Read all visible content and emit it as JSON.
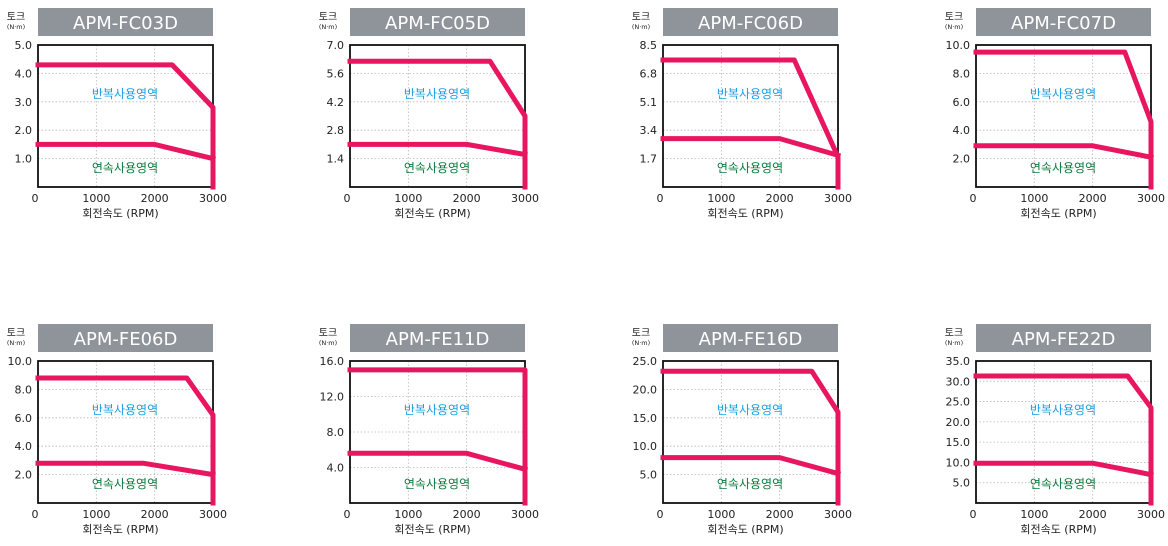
{
  "chart_data": [
    {
      "type": "line",
      "model": "APM-FC03D",
      "ylabel": "토크",
      "yunit": "(N·m)",
      "xlabel": "회전속도 (RPM)",
      "xticks": [
        "0",
        "1000",
        "2000",
        "3000"
      ],
      "yticks": [
        "5.0",
        "4.0",
        "3.0",
        "2.0",
        "1.0"
      ],
      "xlim": [
        0,
        3000
      ],
      "ylim": [
        0,
        5.0
      ],
      "region_top": "반복사용영역",
      "region_bottom": "연속사용영역",
      "series": [
        {
          "x": [
            0,
            2300,
            3000,
            3000
          ],
          "y": [
            4.3,
            4.3,
            2.8,
            0
          ]
        },
        {
          "x": [
            0,
            2000,
            3000
          ],
          "y": [
            1.5,
            1.5,
            1.0
          ]
        }
      ]
    },
    {
      "type": "line",
      "model": "APM-FC05D",
      "ylabel": "토크",
      "yunit": "(N·m)",
      "xlabel": "회전속도 (RPM)",
      "xticks": [
        "0",
        "1000",
        "2000",
        "3000"
      ],
      "yticks": [
        "7.0",
        "5.6",
        "4.2",
        "2.8",
        "1.4"
      ],
      "xlim": [
        0,
        3000
      ],
      "ylim": [
        0,
        7.0
      ],
      "region_top": "반복사용영역",
      "region_bottom": "연속사용영역",
      "series": [
        {
          "x": [
            0,
            2400,
            3000,
            3000
          ],
          "y": [
            6.2,
            6.2,
            3.5,
            0
          ]
        },
        {
          "x": [
            0,
            2000,
            3000
          ],
          "y": [
            2.1,
            2.1,
            1.6
          ]
        }
      ]
    },
    {
      "type": "line",
      "model": "APM-FC06D",
      "ylabel": "토크",
      "yunit": "(N·m)",
      "xlabel": "회전속도 (RPM)",
      "xticks": [
        "0",
        "1000",
        "2000",
        "3000"
      ],
      "yticks": [
        "8.5",
        "6.8",
        "5.1",
        "3.4",
        "1.7"
      ],
      "xlim": [
        0,
        3000
      ],
      "ylim": [
        0,
        8.5
      ],
      "region_top": "반복사용영역",
      "region_bottom": "연속사용영역",
      "series": [
        {
          "x": [
            0,
            2250,
            3000,
            3000
          ],
          "y": [
            7.6,
            7.6,
            1.8,
            0
          ]
        },
        {
          "x": [
            0,
            2000,
            3000
          ],
          "y": [
            2.9,
            2.9,
            1.9
          ]
        }
      ]
    },
    {
      "type": "line",
      "model": "APM-FC07D",
      "ylabel": "토크",
      "yunit": "(N·m)",
      "xlabel": "회전속도 (RPM)",
      "xticks": [
        "0",
        "1000",
        "2000",
        "3000"
      ],
      "yticks": [
        "10.0",
        "8.0",
        "6.0",
        "4.0",
        "2.0"
      ],
      "xlim": [
        0,
        3000
      ],
      "ylim": [
        0,
        10.0
      ],
      "region_top": "반복사용영역",
      "region_bottom": "연속사용영역",
      "series": [
        {
          "x": [
            0,
            2550,
            3000,
            3000
          ],
          "y": [
            9.5,
            9.5,
            4.6,
            0
          ]
        },
        {
          "x": [
            0,
            2000,
            3000
          ],
          "y": [
            2.9,
            2.9,
            2.1
          ]
        }
      ]
    },
    {
      "type": "line",
      "model": "APM-FE06D",
      "ylabel": "토크",
      "yunit": "(N·m)",
      "xlabel": "회전속도 (RPM)",
      "xticks": [
        "0",
        "1000",
        "2000",
        "3000"
      ],
      "yticks": [
        "10.0",
        "8.0",
        "6.0",
        "4.0",
        "2.0"
      ],
      "xlim": [
        0,
        3000
      ],
      "ylim": [
        0,
        10.0
      ],
      "region_top": "반복사용영역",
      "region_bottom": "연속사용영역",
      "series": [
        {
          "x": [
            0,
            2550,
            3000,
            3000
          ],
          "y": [
            8.8,
            8.8,
            6.2,
            0
          ]
        },
        {
          "x": [
            0,
            1800,
            3000
          ],
          "y": [
            2.8,
            2.8,
            2.0
          ]
        }
      ]
    },
    {
      "type": "line",
      "model": "APM-FE11D",
      "ylabel": "토크",
      "yunit": "(N·m)",
      "xlabel": "회전속도 (RPM)",
      "xticks": [
        "0",
        "1000",
        "2000",
        "3000"
      ],
      "yticks": [
        "16.0",
        "12.0",
        "8.0",
        "4.0"
      ],
      "xlim": [
        0,
        3000
      ],
      "ylim": [
        0,
        16.0
      ],
      "region_top": "반복사용영역",
      "region_bottom": "연속사용영역",
      "series": [
        {
          "x": [
            0,
            3000,
            3000
          ],
          "y": [
            15.0,
            15.0,
            0
          ]
        },
        {
          "x": [
            0,
            2000,
            3000
          ],
          "y": [
            5.6,
            5.6,
            3.8
          ]
        }
      ]
    },
    {
      "type": "line",
      "model": "APM-FE16D",
      "ylabel": "토크",
      "yunit": "(N·m)",
      "xlabel": "회전속도 (RPM)",
      "xticks": [
        "0",
        "1000",
        "2000",
        "3000"
      ],
      "yticks": [
        "25.0",
        "20.0",
        "15.0",
        "10.0",
        "5.0"
      ],
      "xlim": [
        0,
        3000
      ],
      "ylim": [
        0,
        25.0
      ],
      "region_top": "반복사용영역",
      "region_bottom": "연속사용영역",
      "series": [
        {
          "x": [
            0,
            2550,
            3000,
            3000
          ],
          "y": [
            23.2,
            23.2,
            16.0,
            0
          ]
        },
        {
          "x": [
            0,
            2000,
            3000
          ],
          "y": [
            8.0,
            8.0,
            5.2
          ]
        }
      ]
    },
    {
      "type": "line",
      "model": "APM-FE22D",
      "ylabel": "토크",
      "yunit": "(N·m)",
      "xlabel": "회전속도 (RPM)",
      "xticks": [
        "0",
        "1000",
        "2000",
        "3000"
      ],
      "yticks": [
        "35.0",
        "30.0",
        "25.0",
        "20.0",
        "15.0",
        "10.0",
        "5.0"
      ],
      "xlim": [
        0,
        3000
      ],
      "ylim": [
        0,
        35.0
      ],
      "region_top": "반복사용영역",
      "region_bottom": "연속사용영역",
      "series": [
        {
          "x": [
            0,
            2600,
            3000,
            3000
          ],
          "y": [
            31.3,
            31.3,
            23.5,
            0
          ]
        },
        {
          "x": [
            0,
            2000,
            3000
          ],
          "y": [
            9.8,
            9.8,
            7.0
          ]
        }
      ]
    }
  ],
  "colors": {
    "curve": "#e8165e",
    "title_bg": "#8f949a",
    "title_fg": "#ffffff",
    "region_top": "#1aa0e0",
    "region_bottom": "#0a7a3a",
    "grid": "#b8b8b8",
    "text": "#222222"
  }
}
